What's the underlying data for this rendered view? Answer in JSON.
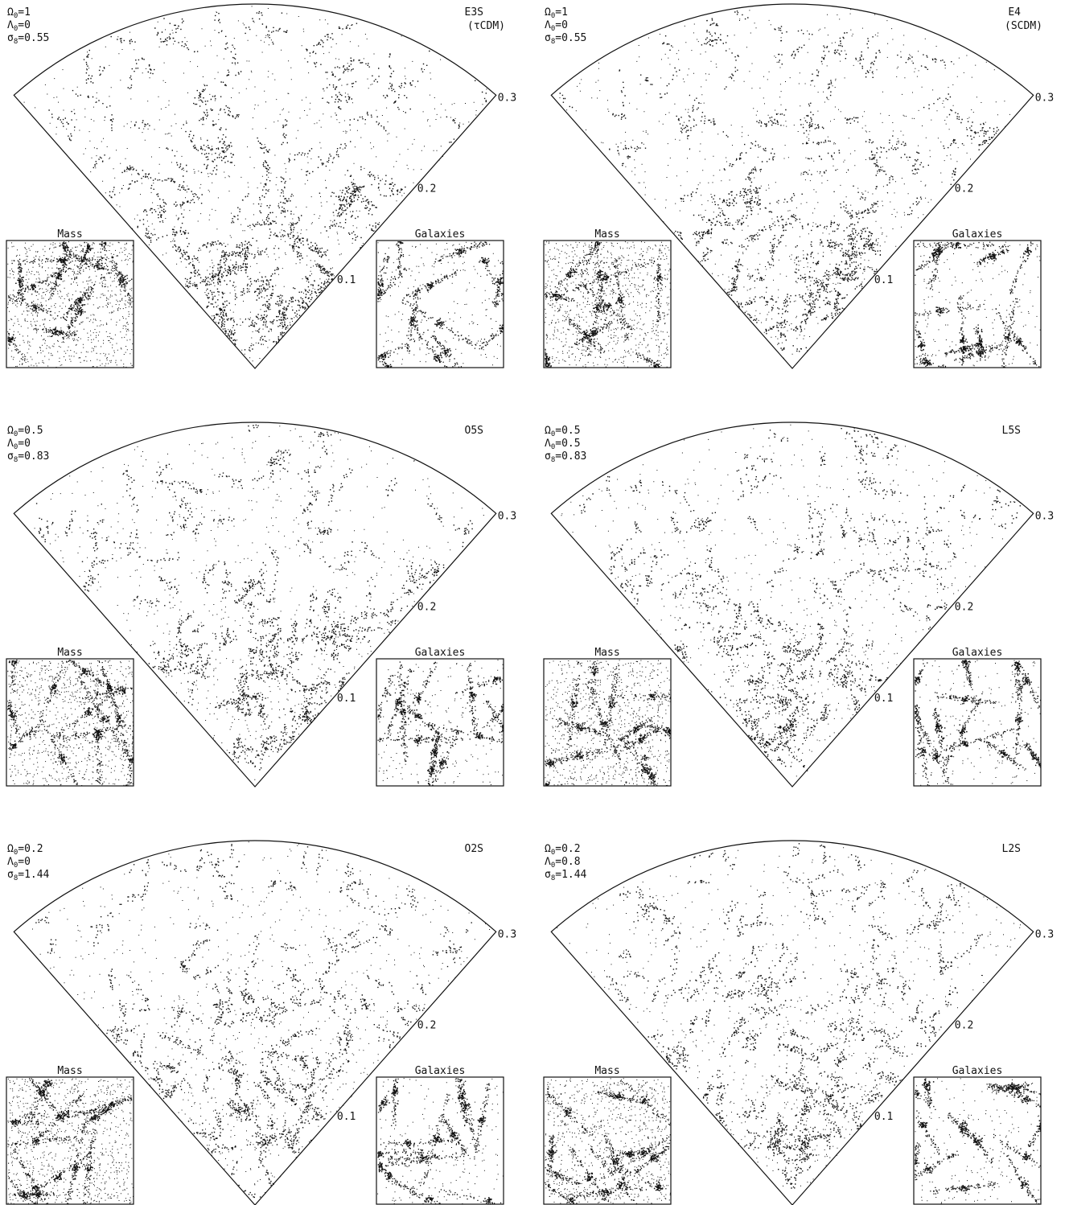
{
  "panels": [
    {
      "model": "E3S",
      "variant": "(τCDM)",
      "params": [
        {
          "symbol": "Ω",
          "subscript": "0",
          "value": "=1"
        },
        {
          "symbol": "Λ",
          "subscript": "0",
          "value": "=0"
        },
        {
          "symbol": "σ",
          "subscript": "8",
          "value": "=0.55"
        }
      ]
    },
    {
      "model": "E4",
      "variant": "(SCDM)",
      "params": [
        {
          "symbol": "Ω",
          "subscript": "0",
          "value": "=1"
        },
        {
          "symbol": "Λ",
          "subscript": "0",
          "value": "=0"
        },
        {
          "symbol": "σ",
          "subscript": "8",
          "value": "=0.55"
        }
      ]
    },
    {
      "model": "O5S",
      "params": [
        {
          "symbol": "Ω",
          "subscript": "0",
          "value": "=0.5"
        },
        {
          "symbol": "Λ",
          "subscript": "0",
          "value": "=0"
        },
        {
          "symbol": "σ",
          "subscript": "8",
          "value": "=0.83"
        }
      ]
    },
    {
      "model": "L5S",
      "params": [
        {
          "symbol": "Ω",
          "subscript": "0",
          "value": "=0.5"
        },
        {
          "symbol": "Λ",
          "subscript": "0",
          "value": "=0.5"
        },
        {
          "symbol": "σ",
          "subscript": "8",
          "value": "=0.83"
        }
      ]
    },
    {
      "model": "O2S",
      "params": [
        {
          "symbol": "Ω",
          "subscript": "0",
          "value": "=0.2"
        },
        {
          "symbol": "Λ",
          "subscript": "0",
          "value": "=0"
        },
        {
          "symbol": "σ",
          "subscript": "8",
          "value": "=1.44"
        }
      ]
    },
    {
      "model": "L2S",
      "params": [
        {
          "symbol": "Ω",
          "subscript": "0",
          "value": "=0.2"
        },
        {
          "symbol": "Λ",
          "subscript": "0",
          "value": "=0.8"
        },
        {
          "symbol": "σ",
          "subscript": "8",
          "value": "=1.44"
        }
      ]
    }
  ],
  "redshift_ticks": [
    0.1,
    0.2,
    0.3
  ],
  "inset_labels": [
    "Mass",
    "Galaxies"
  ]
}
